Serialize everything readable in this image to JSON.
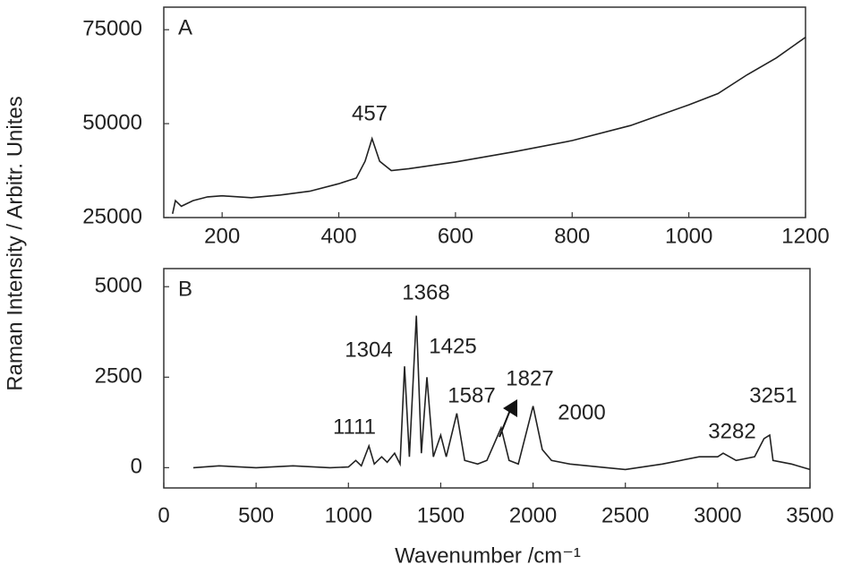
{
  "chart_data": [
    {
      "type": "line",
      "panel_label": "A",
      "ylabel": "Raman Intensity / Arbitr. Unites",
      "x": [
        115,
        120,
        130,
        150,
        175,
        200,
        250,
        300,
        350,
        400,
        430,
        445,
        457,
        470,
        490,
        520,
        600,
        700,
        800,
        900,
        1000,
        1050,
        1100,
        1150,
        1200
      ],
      "values": [
        26000,
        29500,
        28000,
        29500,
        30500,
        30800,
        30300,
        31000,
        32000,
        34000,
        35500,
        40000,
        46000,
        40000,
        37500,
        38000,
        39800,
        42500,
        45500,
        49500,
        55000,
        58000,
        63000,
        67500,
        73000
      ],
      "color": "#222222",
      "xlim": [
        100,
        1200
      ],
      "xticks": [
        200,
        400,
        600,
        800,
        1000,
        1200
      ],
      "ylim": [
        25000,
        81000
      ],
      "yticks": [
        25000,
        50000,
        75000
      ],
      "annotations": [
        "457"
      ]
    },
    {
      "type": "line",
      "panel_label": "B",
      "xlabel": "Wavenumber /cm⁻¹",
      "x": [
        160,
        300,
        500,
        700,
        900,
        1000,
        1040,
        1070,
        1111,
        1140,
        1180,
        1210,
        1250,
        1280,
        1304,
        1330,
        1368,
        1395,
        1425,
        1460,
        1500,
        1530,
        1587,
        1630,
        1700,
        1750,
        1827,
        1870,
        1920,
        2000,
        2050,
        2100,
        2200,
        2400,
        2500,
        2700,
        2900,
        3000,
        3030,
        3100,
        3200,
        3251,
        3282,
        3300,
        3400,
        3500
      ],
      "values": [
        0,
        50,
        0,
        50,
        0,
        20,
        200,
        50,
        600,
        100,
        300,
        150,
        400,
        100,
        2800,
        300,
        4200,
        400,
        2500,
        300,
        900,
        300,
        1500,
        200,
        100,
        200,
        1100,
        200,
        100,
        1700,
        500,
        200,
        100,
        0,
        -50,
        100,
        300,
        300,
        400,
        200,
        300,
        800,
        900,
        200,
        100,
        -50
      ],
      "color": "#222222",
      "xlim": [
        0,
        3500
      ],
      "xticks": [
        0,
        500,
        1000,
        1500,
        2000,
        2500,
        3000,
        3500
      ],
      "ylim": [
        -560,
        5500
      ],
      "yticks": [
        0,
        2500,
        5000
      ],
      "annotations": [
        "1111",
        "1304",
        "1368",
        "1425",
        "1587",
        "1827",
        "2000",
        "3282",
        "3251"
      ]
    }
  ]
}
